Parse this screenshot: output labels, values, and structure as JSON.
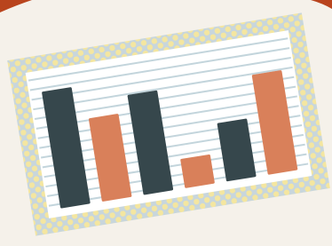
{
  "chart_data": {
    "type": "bar",
    "categories": [
      null,
      null,
      null,
      null,
      null,
      null
    ],
    "values": [
      14,
      10,
      12,
      3.5,
      7,
      12
    ],
    "colors": [
      "#36474c",
      "#d9805a",
      "#36474c",
      "#d9805a",
      "#36474c",
      "#d9805a"
    ],
    "ylim": [
      0,
      16
    ],
    "grid": true
  }
}
